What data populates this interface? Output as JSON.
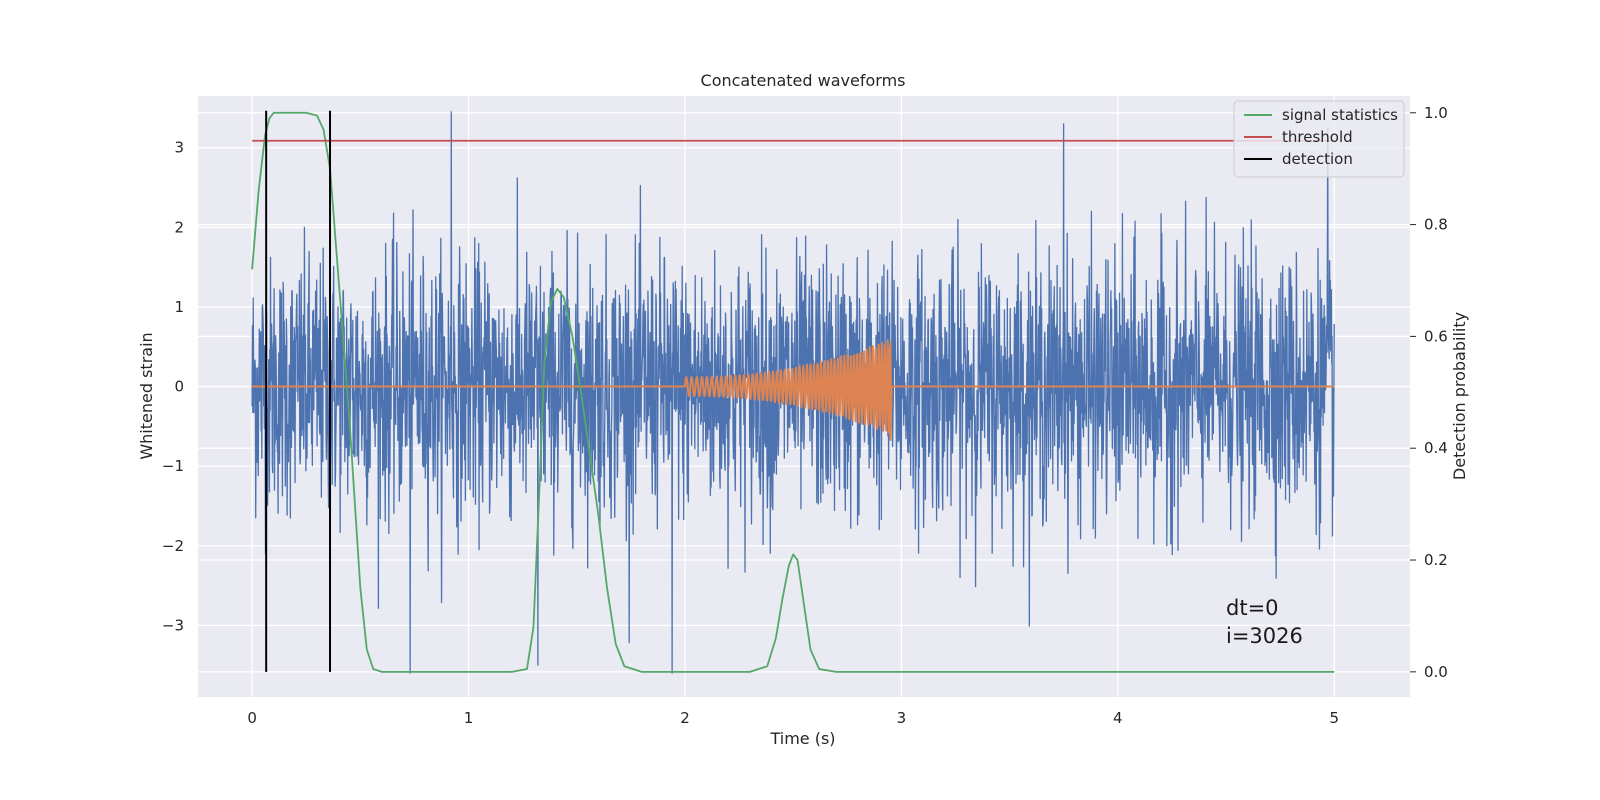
{
  "chart_data": {
    "type": "line",
    "title": "Concatenated waveforms",
    "xlabel": "Time (s)",
    "ylabel": "Whitened strain",
    "y2label": "Detection probability",
    "xlim": [
      -0.25,
      5.35
    ],
    "ylim": [
      -3.9,
      3.65
    ],
    "y2lim": [
      -0.045,
      1.03
    ],
    "x_ticks": [
      0,
      1,
      2,
      3,
      4,
      5
    ],
    "y_ticks": [
      -3,
      -2,
      -1,
      0,
      1,
      2,
      3
    ],
    "y2_ticks": [
      0.0,
      0.2,
      0.4,
      0.6,
      0.8,
      1.0
    ],
    "x_tick_labels": [
      "0",
      "1",
      "2",
      "3",
      "4",
      "5"
    ],
    "y_tick_labels": [
      "−3",
      "−2",
      "−1",
      "0",
      "1",
      "2",
      "3"
    ],
    "y2_tick_labels": [
      "0.0",
      "0.2",
      "0.4",
      "0.6",
      "0.8",
      "1.0"
    ],
    "grid": true,
    "legend_position": "top-right",
    "series": [
      {
        "name": "",
        "axis": "left",
        "color": "#4c72b0",
        "kind": "noise",
        "x_range": [
          0,
          5
        ],
        "typical_amplitude": 0.8,
        "peak_values": [
          {
            "x": 0.92,
            "y": 3.45
          },
          {
            "x": 3.75,
            "y": 3.3
          },
          {
            "x": 4.97,
            "y": 3.25
          },
          {
            "x": 1.32,
            "y": -3.5
          },
          {
            "x": 1.94,
            "y": -3.6
          },
          {
            "x": 0.73,
            "y": -3.6
          }
        ]
      },
      {
        "name": "",
        "axis": "left",
        "color": "#dd8452",
        "kind": "chirp",
        "x_range": [
          0,
          5
        ],
        "chirp_start": 2.0,
        "chirp_end": 2.95,
        "amplitude_start": 0.12,
        "amplitude_end": 0.6
      },
      {
        "name": "signal statistics",
        "axis": "right",
        "color": "#55a868",
        "x": [
          0,
          0.03,
          0.06,
          0.08,
          0.1,
          0.15,
          0.2,
          0.25,
          0.3,
          0.33,
          0.36,
          0.4,
          0.45,
          0.5,
          0.53,
          0.56,
          0.6,
          0.8,
          1.0,
          1.2,
          1.27,
          1.3,
          1.33,
          1.35,
          1.38,
          1.41,
          1.44,
          1.48,
          1.52,
          1.56,
          1.6,
          1.64,
          1.68,
          1.72,
          1.8,
          2.0,
          2.3,
          2.38,
          2.42,
          2.45,
          2.48,
          2.5,
          2.52,
          2.55,
          2.58,
          2.62,
          2.7,
          3.0,
          4.0,
          5.0
        ],
        "y": [
          0.72,
          0.86,
          0.96,
          0.99,
          1.0,
          1.0,
          1.0,
          1.0,
          0.995,
          0.97,
          0.9,
          0.7,
          0.45,
          0.15,
          0.04,
          0.005,
          0.0,
          0.0,
          0.0,
          0.0,
          0.005,
          0.08,
          0.35,
          0.55,
          0.66,
          0.685,
          0.67,
          0.6,
          0.5,
          0.39,
          0.28,
          0.15,
          0.05,
          0.01,
          0.0,
          0.0,
          0.0,
          0.01,
          0.06,
          0.13,
          0.19,
          0.21,
          0.2,
          0.12,
          0.04,
          0.005,
          0.0,
          0.0,
          0.0,
          0.0
        ]
      },
      {
        "name": "threshold",
        "axis": "right",
        "color": "#c44e52",
        "x": [
          0,
          5
        ],
        "y": [
          0.95,
          0.95
        ]
      },
      {
        "name": "detection",
        "axis": "right",
        "color": "#000000",
        "kind": "vlines",
        "x": [
          0.065,
          0.36
        ]
      }
    ],
    "annotations": [
      "dt=0",
      "i=3026"
    ]
  }
}
